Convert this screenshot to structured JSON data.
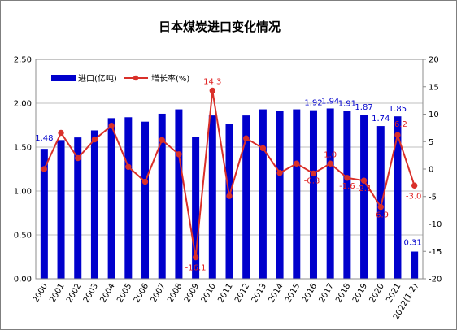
{
  "chart_data": {
    "type": "bar+line",
    "title": "日本煤炭进口变化情况",
    "categories": [
      "2000",
      "2001",
      "2002",
      "2003",
      "2004",
      "2005",
      "2006",
      "2007",
      "2008",
      "2009",
      "2010",
      "2011",
      "2012",
      "2013",
      "2014",
      "2015",
      "2016",
      "2017",
      "2018",
      "2019",
      "2020",
      "2021",
      "2022(1-2)"
    ],
    "series": [
      {
        "name": "进口(亿吨)",
        "type": "bar",
        "axis": "left",
        "color": "#0000CC",
        "values": [
          1.48,
          1.58,
          1.61,
          1.69,
          1.83,
          1.84,
          1.79,
          1.88,
          1.93,
          1.62,
          1.86,
          1.76,
          1.86,
          1.93,
          1.91,
          1.93,
          1.92,
          1.94,
          1.91,
          1.87,
          1.74,
          1.85,
          0.31
        ]
      },
      {
        "name": "增长率(%)",
        "type": "line",
        "axis": "right",
        "color": "#D9302A",
        "values": [
          0.0,
          6.6,
          2.0,
          5.4,
          7.9,
          0.4,
          -2.3,
          5.3,
          2.7,
          -16.1,
          14.3,
          -4.9,
          5.6,
          3.8,
          -0.7,
          1.0,
          -0.8,
          1.0,
          -1.6,
          -2.1,
          -6.9,
          6.2,
          -3.0
        ]
      }
    ],
    "bar_labels": [
      {
        "index": 0,
        "text": "1.48"
      },
      {
        "index": 16,
        "text": "1.92"
      },
      {
        "index": 17,
        "text": "1.94"
      },
      {
        "index": 18,
        "text": "1.91"
      },
      {
        "index": 19,
        "text": "1.87"
      },
      {
        "index": 20,
        "text": "1.74"
      },
      {
        "index": 21,
        "text": "1.85"
      },
      {
        "index": 22,
        "text": "0.31"
      }
    ],
    "line_labels": [
      {
        "index": 9,
        "text": "-16.1"
      },
      {
        "index": 10,
        "text": "14.3"
      },
      {
        "index": 16,
        "text": "-0.8"
      },
      {
        "index": 17,
        "text": "1.0"
      },
      {
        "index": 18,
        "text": "-1.6"
      },
      {
        "index": 19,
        "text": "-2.1"
      },
      {
        "index": 20,
        "text": "-6.9"
      },
      {
        "index": 21,
        "text": "6.2"
      },
      {
        "index": 22,
        "text": "-3.0"
      }
    ],
    "left_axis": {
      "min": 0,
      "max": 2.5,
      "ticks": [
        "0.00",
        "0.50",
        "1.00",
        "1.50",
        "2.00",
        "2.50"
      ]
    },
    "right_axis": {
      "min": -20,
      "max": 20,
      "ticks": [
        "-20",
        "-15",
        "-10",
        "-5",
        "0",
        "5",
        "10",
        "15",
        "20"
      ]
    },
    "legend": [
      "进口(亿吨)",
      "增长率(%)"
    ],
    "legend_position": "top-left",
    "grid": true
  }
}
